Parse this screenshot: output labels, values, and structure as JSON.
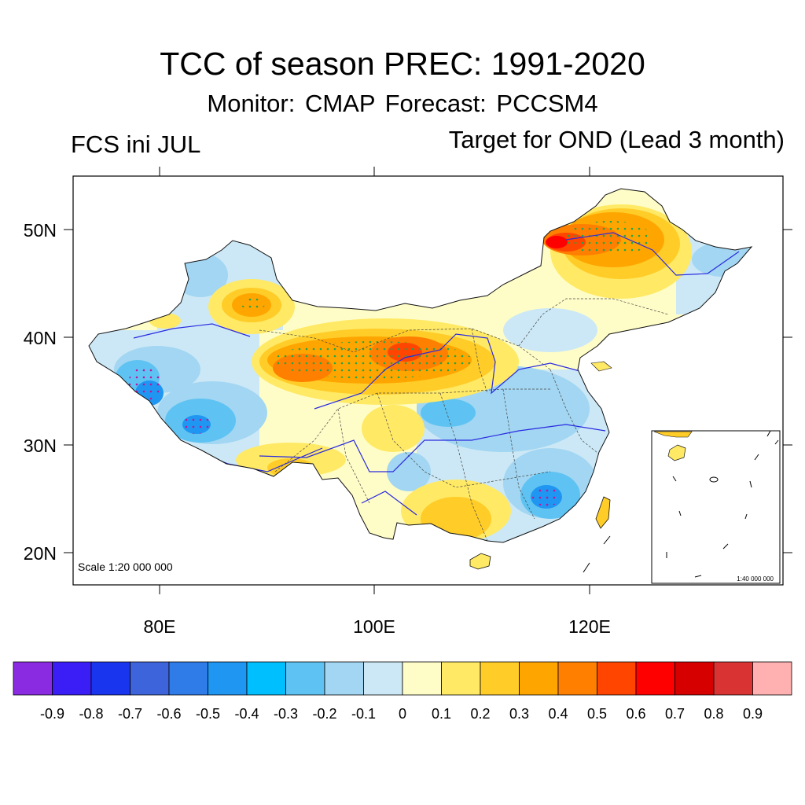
{
  "title": "TCC of season PREC: 1991-2020",
  "subtitle": "Monitor: CMAP   Forecast: PCCSM4",
  "left_label": "FCS ini JUL",
  "right_label": "Target for OND (Lead 3 month)",
  "scale_text": "Scale 1:20 000 000",
  "inset_scale_text": "1:40 000 000",
  "lat_labels": [
    "20N",
    "30N",
    "40N",
    "50N"
  ],
  "lon_labels": [
    "80E",
    "100E",
    "120E"
  ],
  "colorbar": {
    "colors": [
      "#8a2be2",
      "#3a1ef5",
      "#1a35ee",
      "#3e64dc",
      "#2f7be8",
      "#1e96f2",
      "#00bfff",
      "#5ec3f2",
      "#a2d6f2",
      "#cce8f6",
      "#fffdc7",
      "#ffe965",
      "#ffcc28",
      "#ffa500",
      "#ff7f00",
      "#ff4500",
      "#ff0000",
      "#d60000",
      "#d93333",
      "#ffb0b0"
    ],
    "labels": [
      "-0.9",
      "-0.8",
      "-0.7",
      "-0.6",
      "-0.5",
      "-0.4",
      "-0.3",
      "-0.2",
      "-0.1",
      "0",
      "0.1",
      "0.2",
      "0.3",
      "0.4",
      "0.5",
      "0.6",
      "0.7",
      "0.8",
      "0.9"
    ]
  }
}
